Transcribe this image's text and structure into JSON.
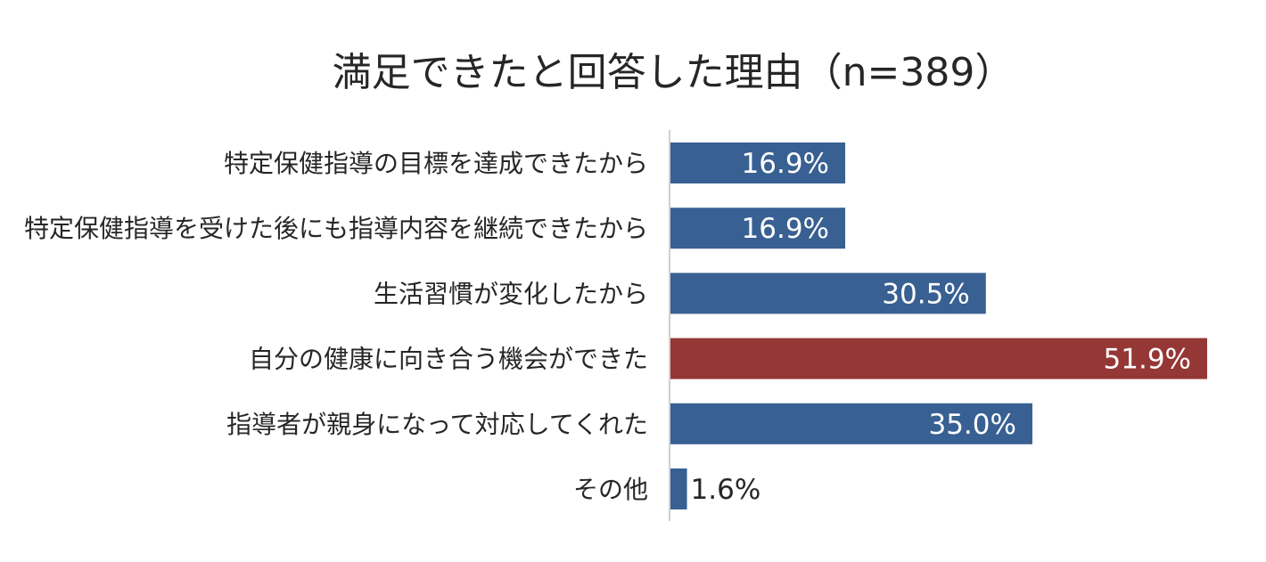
{
  "chart_data": {
    "type": "bar",
    "orientation": "horizontal",
    "title": "満足できたと回答した理由（n=389）",
    "categories": [
      "特定保健指導の目標を達成できたから",
      "特定保健指導を受けた後にも指導内容を継続できたから",
      "生活習慣が変化したから",
      "自分の健康に向き合う機会ができた",
      "指導者が親身になって対応してくれた",
      "その他"
    ],
    "values": [
      16.9,
      16.9,
      30.5,
      51.9,
      35.0,
      1.6
    ],
    "value_labels": [
      "16.9%",
      "16.9%",
      "30.5%",
      "51.9%",
      "35.0%",
      "1.6%"
    ],
    "unit": "%",
    "highlight_index": 3,
    "colors": {
      "bar": "#386092",
      "highlight": "#953735",
      "label_inside": "#ffffff",
      "label_outside": "#262626"
    },
    "xlim": [
      0,
      52
    ],
    "grid": false,
    "legend": "none"
  }
}
